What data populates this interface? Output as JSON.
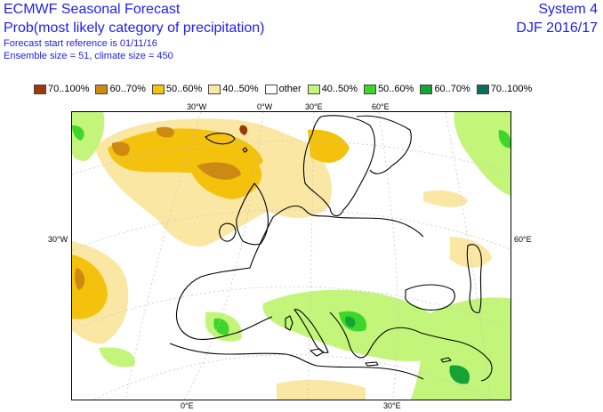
{
  "header": {
    "title": "ECMWF Seasonal Forecast",
    "subtitle": "Prob(most likely category of precipitation)",
    "forecast_start": "Forecast start reference is 01/11/16",
    "ensemble": "Ensemble size = 51, climate size = 450",
    "system": "System 4",
    "season": "DJF 2016/17"
  },
  "legend": [
    {
      "label": "70..100%",
      "color": "#9a3a06"
    },
    {
      "label": "60..70%",
      "color": "#cc8a14"
    },
    {
      "label": "50..60%",
      "color": "#f4c20c"
    },
    {
      "label": "40..50%",
      "color": "#fbe7a4"
    },
    {
      "label": "other",
      "color": "#ffffff"
    },
    {
      "label": "40..50%",
      "color": "#c2f57a"
    },
    {
      "label": "50..60%",
      "color": "#3ed62a"
    },
    {
      "label": "60..70%",
      "color": "#16a336"
    },
    {
      "label": "70..100%",
      "color": "#0b6e5c"
    }
  ],
  "grid_labels": {
    "top": [
      "30°W",
      "0°W",
      "30°E",
      "60°E"
    ],
    "bottom": [
      "0°E",
      "30°E"
    ],
    "left": "30°W",
    "right": "60°E"
  }
}
